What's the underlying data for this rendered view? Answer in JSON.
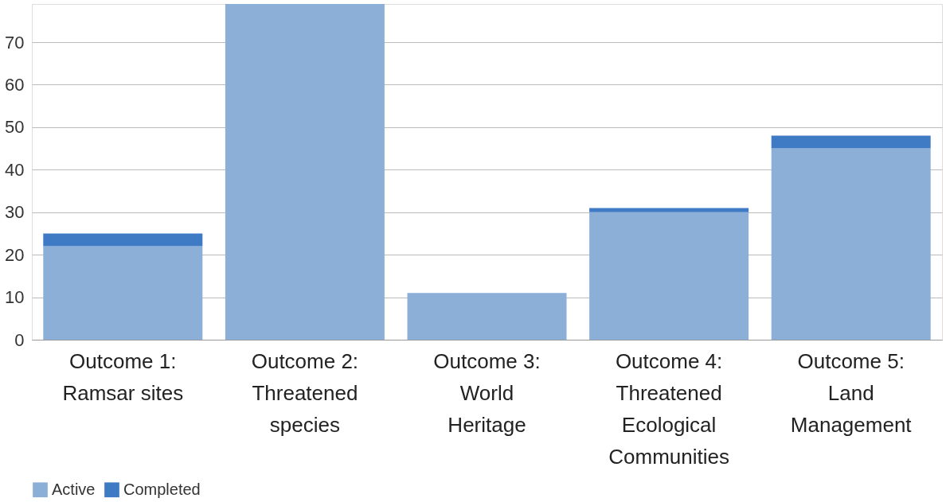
{
  "chart_data": {
    "type": "bar",
    "stacked": true,
    "categories": [
      "Outcome 1: Ramsar sites",
      "Outcome 2: Threatened species",
      "Outcome 3: World Heritage",
      "Outcome 4: Threatened Ecological Communities",
      "Outcome 5: Land Management"
    ],
    "series": [
      {
        "name": "Active",
        "color": "#8cafd8",
        "values": [
          22,
          79,
          11,
          30,
          45
        ]
      },
      {
        "name": "Completed",
        "color": "#3f7bc4",
        "values": [
          3,
          0,
          0,
          1,
          3
        ]
      }
    ],
    "ylim": [
      0,
      79
    ],
    "yticks": [
      0,
      10,
      20,
      30,
      40,
      50,
      60,
      70
    ],
    "grid": "y",
    "legend": "bottom"
  }
}
